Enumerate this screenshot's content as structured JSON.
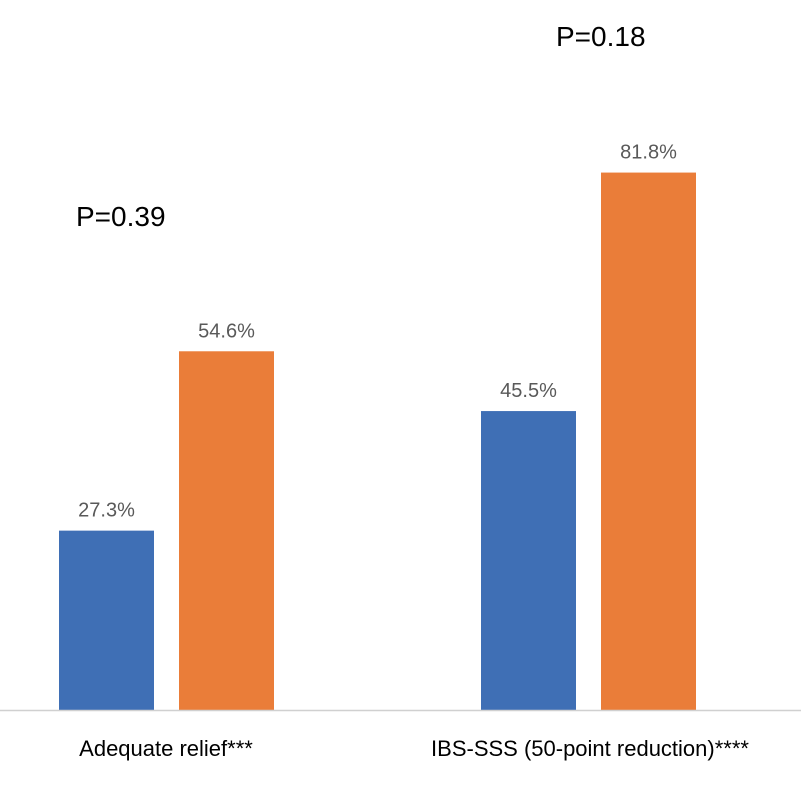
{
  "chart_data": {
    "type": "bar",
    "categories": [
      "Adequate relief***",
      "IBS-SSS (50-point reduction)****"
    ],
    "series": [
      {
        "values": [
          27.3,
          45.5
        ],
        "labels": [
          "27.3%",
          "45.5%"
        ],
        "color": "#3f6fb5"
      },
      {
        "values": [
          54.6,
          81.8
        ],
        "labels": [
          "54.6%",
          "81.8%"
        ],
        "color": "#ea7d39"
      }
    ],
    "annotations": [
      "P=0.39",
      "P=0.18"
    ],
    "ylim": [
      0,
      100
    ],
    "grid": false,
    "legend": "none",
    "title": "",
    "xlabel": "",
    "ylabel": ""
  }
}
